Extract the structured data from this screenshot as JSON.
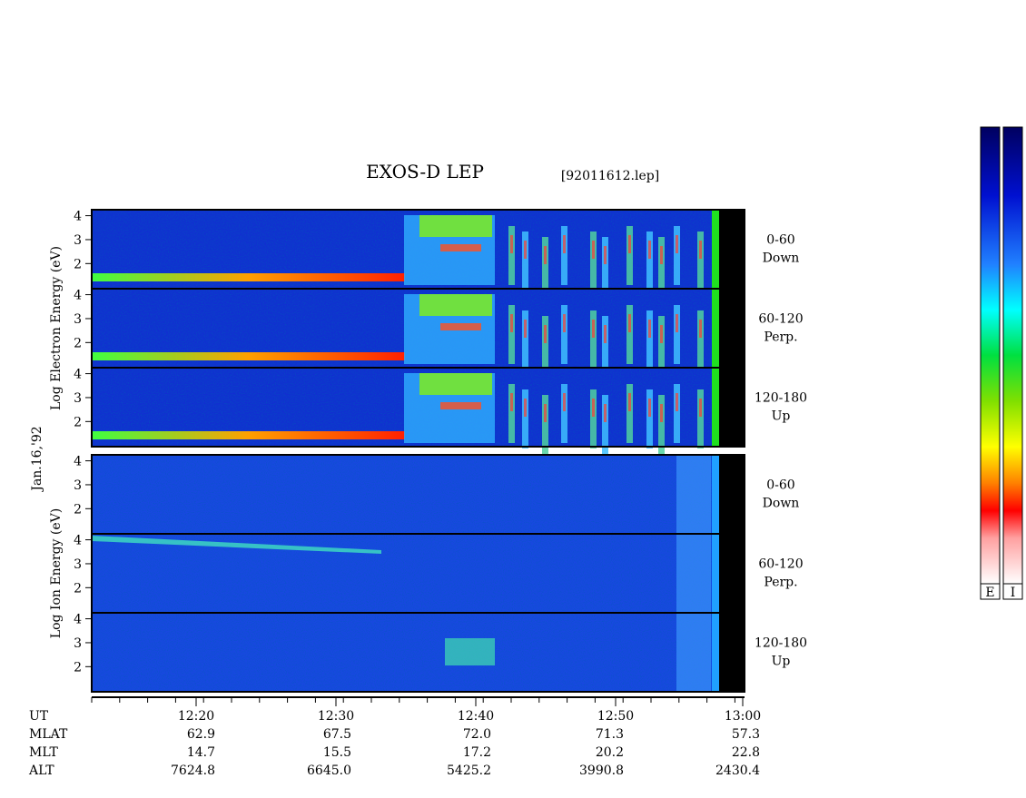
{
  "title": "EXOS-D LEP",
  "file": "[92011612.lep]",
  "date": "Jan.16,'92",
  "chart_data": {
    "type": "spectrogram",
    "groups": [
      {
        "ylabel": "Log Electron Energy (eV)",
        "species": "electron",
        "panels": [
          {
            "label": [
              "0-60",
              "Down"
            ]
          },
          {
            "label": [
              "60-120",
              "Perp."
            ]
          },
          {
            "label": [
              "120-180",
              "Up"
            ]
          }
        ]
      },
      {
        "ylabel": "Log Ion Energy (eV)",
        "species": "ion",
        "panels": [
          {
            "label": [
              "0-60",
              "Down"
            ]
          },
          {
            "label": [
              "60-120",
              "Perp."
            ]
          },
          {
            "label": [
              "120-180",
              "Up"
            ]
          }
        ]
      }
    ],
    "ylim": [
      0.95,
      4.25
    ],
    "yticks": [
      2,
      3,
      4
    ],
    "xticks": [
      "12:20",
      "12:30",
      "12:40",
      "12:50",
      "13:00"
    ]
  },
  "ephemeris": {
    "x_label": "UT",
    "rows": [
      {
        "name": "MLAT",
        "values": [
          "62.9",
          "67.5",
          "72.0",
          "71.3",
          "57.3"
        ]
      },
      {
        "name": "MLT",
        "values": [
          "14.7",
          "15.5",
          "17.2",
          "20.2",
          "22.8"
        ]
      },
      {
        "name": "ALT",
        "values": [
          "7624.8",
          "6645.0",
          "5425.2",
          "3990.8",
          "2430.4"
        ]
      }
    ]
  },
  "colorbars": [
    "E",
    "I"
  ]
}
